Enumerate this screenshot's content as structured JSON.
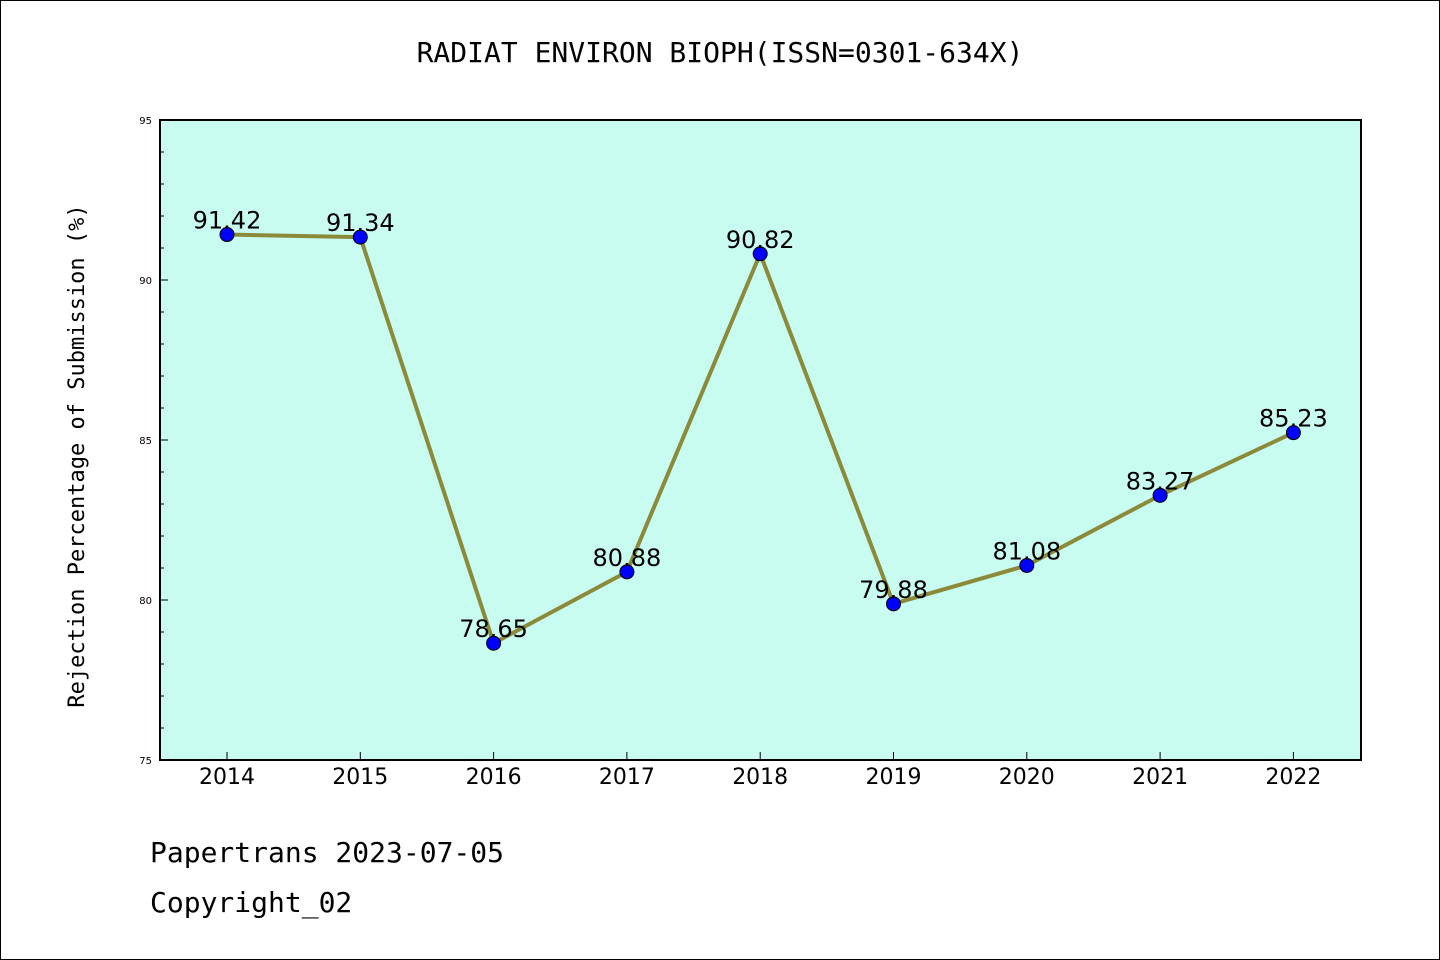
{
  "title": "RADIAT ENVIRON BIOPH(ISSN=0301-634X)",
  "footer": {
    "line1": "Papertrans 2023-07-05",
    "line2": "Copyright_02"
  },
  "colors": {
    "plot_background": "#c8fcf0",
    "line": "#8b8a3a",
    "marker": "#0000ff"
  },
  "chart_data": {
    "type": "line",
    "title": "RADIAT ENVIRON BIOPH(ISSN=0301-634X)",
    "xlabel": "",
    "ylabel": "Rejection Percentage of Submission (%)",
    "categories": [
      "2014",
      "2015",
      "2016",
      "2017",
      "2018",
      "2019",
      "2020",
      "2021",
      "2022"
    ],
    "values": [
      91.42,
      91.34,
      78.65,
      80.88,
      90.82,
      79.88,
      81.08,
      83.27,
      85.23
    ],
    "labels": [
      "91.42",
      "91.34",
      "78.65",
      "80.88",
      "90.82",
      "79.88",
      "81.08",
      "83.27",
      "85.23"
    ],
    "ylim": [
      75,
      95
    ],
    "yticks": [
      "75",
      "80",
      "85",
      "90",
      "95"
    ],
    "grid": false,
    "legend": "none"
  }
}
